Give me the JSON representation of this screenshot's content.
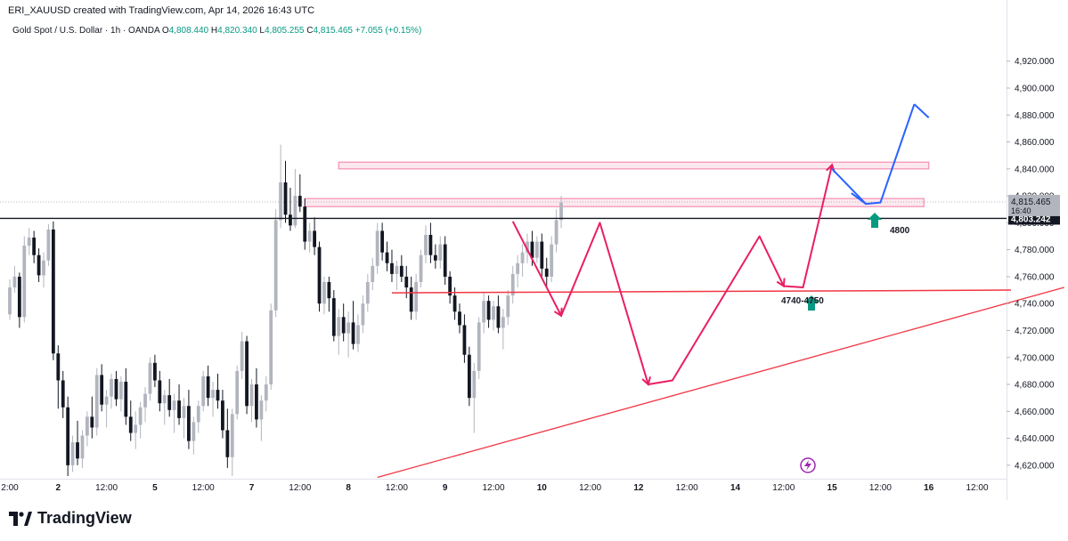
{
  "header": {
    "created_text": "ERI_XAUUSD created with TradingView.com, Apr 14, 2026 16:43 UTC"
  },
  "legend": {
    "symbol": "Gold Spot / U.S. Dollar · 1h · OANDA",
    "o_label": "O",
    "o_value": "4,808.440",
    "h_label": "H",
    "h_value": "4,820.340",
    "l_label": "L",
    "l_value": "4,805.255",
    "c_label": "C",
    "c_value": "4,815.465",
    "change": "+7.055 (+0.15%)"
  },
  "brand": {
    "name": "TradingView"
  },
  "colors": {
    "up": "#b2b5be",
    "down": "#131722",
    "pink": "#e91e63",
    "red": "#f23645",
    "blue": "#2962ff",
    "green": "#089981"
  },
  "chart_data": {
    "type": "candlestick",
    "title": "Gold Spot / U.S. Dollar · 1h · OANDA",
    "ylim": [
      4610,
      4935
    ],
    "y_ticks": [
      "4,620.000",
      "4,640.000",
      "4,660.000",
      "4,680.000",
      "4,700.000",
      "4,720.000",
      "4,740.000",
      "4,760.000",
      "4,780.000",
      "4,800.000",
      "4,820.000",
      "4,840.000",
      "4,860.000",
      "4,880.000",
      "4,900.000",
      "4,920.000"
    ],
    "y_tick_values": [
      4620,
      4640,
      4660,
      4680,
      4700,
      4720,
      4740,
      4760,
      4780,
      4800,
      4820,
      4840,
      4860,
      4880,
      4900,
      4920
    ],
    "x_ticks": [
      {
        "label": "2:00",
        "bar": 0
      },
      {
        "label": "2",
        "bar": 10
      },
      {
        "label": "12:00",
        "bar": 20
      },
      {
        "label": "5",
        "bar": 30
      },
      {
        "label": "12:00",
        "bar": 40
      },
      {
        "label": "7",
        "bar": 50
      },
      {
        "label": "12:00",
        "bar": 60
      },
      {
        "label": "8",
        "bar": 70
      },
      {
        "label": "12:00",
        "bar": 80
      },
      {
        "label": "9",
        "bar": 90
      },
      {
        "label": "12:00",
        "bar": 100
      },
      {
        "label": "10",
        "bar": 110
      },
      {
        "label": "12:00",
        "bar": 120
      },
      {
        "label": "12",
        "bar": 130
      },
      {
        "label": "12:00",
        "bar": 140
      },
      {
        "label": "14",
        "bar": 150
      },
      {
        "label": "12:00",
        "bar": 160
      },
      {
        "label": "15",
        "bar": 170
      },
      {
        "label": "12:00",
        "bar": 180
      },
      {
        "label": "16",
        "bar": 190
      },
      {
        "label": "12:00",
        "bar": 200
      }
    ],
    "price_labels": {
      "last_price": "4,815.465",
      "countdown": "16:40",
      "line_price": "4,803.242",
      "line_value": 4803.242
    },
    "candles": [
      [
        4732,
        4758,
        4728,
        4752
      ],
      [
        4752,
        4768,
        4748,
        4760
      ],
      [
        4760,
        4763,
        4722,
        4730
      ],
      [
        4730,
        4790,
        4726,
        4783
      ],
      [
        4783,
        4796,
        4776,
        4789
      ],
      [
        4789,
        4794,
        4770,
        4776
      ],
      [
        4776,
        4781,
        4756,
        4761
      ],
      [
        4761,
        4778,
        4752,
        4772
      ],
      [
        4772,
        4799,
        4768,
        4795
      ],
      [
        4795,
        4801,
        4698,
        4703
      ],
      [
        4703,
        4709,
        4662,
        4683
      ],
      [
        4683,
        4690,
        4655,
        4663
      ],
      [
        4663,
        4671,
        4612,
        4620
      ],
      [
        4620,
        4642,
        4615,
        4637
      ],
      [
        4637,
        4653,
        4620,
        4625
      ],
      [
        4625,
        4646,
        4618,
        4642
      ],
      [
        4642,
        4660,
        4634,
        4656
      ],
      [
        4656,
        4671,
        4640,
        4648
      ],
      [
        4648,
        4692,
        4642,
        4687
      ],
      [
        4687,
        4695,
        4660,
        4665
      ],
      [
        4665,
        4676,
        4648,
        4671
      ],
      [
        4671,
        4688,
        4662,
        4684
      ],
      [
        4684,
        4690,
        4664,
        4669
      ],
      [
        4669,
        4686,
        4660,
        4682
      ],
      [
        4682,
        4692,
        4650,
        4656
      ],
      [
        4656,
        4668,
        4638,
        4644
      ],
      [
        4644,
        4660,
        4632,
        4650
      ],
      [
        4650,
        4667,
        4640,
        4663
      ],
      [
        4663,
        4678,
        4652,
        4673
      ],
      [
        4673,
        4700,
        4668,
        4696
      ],
      [
        4696,
        4702,
        4678,
        4683
      ],
      [
        4683,
        4690,
        4660,
        4666
      ],
      [
        4666,
        4676,
        4650,
        4672
      ],
      [
        4672,
        4684,
        4656,
        4661
      ],
      [
        4661,
        4673,
        4644,
        4668
      ],
      [
        4668,
        4680,
        4650,
        4655
      ],
      [
        4655,
        4670,
        4640,
        4664
      ],
      [
        4664,
        4676,
        4632,
        4638
      ],
      [
        4638,
        4656,
        4628,
        4652
      ],
      [
        4652,
        4668,
        4644,
        4664
      ],
      [
        4664,
        4690,
        4660,
        4686
      ],
      [
        4686,
        4694,
        4664,
        4670
      ],
      [
        4670,
        4682,
        4656,
        4676
      ],
      [
        4676,
        4688,
        4662,
        4668
      ],
      [
        4668,
        4676,
        4640,
        4646
      ],
      [
        4646,
        4662,
        4618,
        4626
      ],
      [
        4626,
        4662,
        4612,
        4658
      ],
      [
        4658,
        4694,
        4654,
        4690
      ],
      [
        4690,
        4719,
        4684,
        4712
      ],
      [
        4712,
        4716,
        4658,
        4664
      ],
      [
        4664,
        4684,
        4652,
        4680
      ],
      [
        4680,
        4692,
        4648,
        4654
      ],
      [
        4654,
        4672,
        4638,
        4668
      ],
      [
        4668,
        4686,
        4660,
        4680
      ],
      [
        4680,
        4740,
        4676,
        4735
      ],
      [
        4735,
        4810,
        4730,
        4802
      ],
      [
        4802,
        4858,
        4796,
        4830
      ],
      [
        4830,
        4846,
        4800,
        4806
      ],
      [
        4806,
        4826,
        4794,
        4798
      ],
      [
        4798,
        4840,
        4796,
        4820
      ],
      [
        4820,
        4836,
        4808,
        4812
      ],
      [
        4812,
        4818,
        4780,
        4786
      ],
      [
        4786,
        4800,
        4778,
        4794
      ],
      [
        4794,
        4804,
        4776,
        4782
      ],
      [
        4782,
        4786,
        4734,
        4740
      ],
      [
        4740,
        4760,
        4732,
        4756
      ],
      [
        4756,
        4760,
        4734,
        4744
      ],
      [
        4744,
        4750,
        4712,
        4716
      ],
      [
        4716,
        4736,
        4702,
        4730
      ],
      [
        4730,
        4740,
        4712,
        4718
      ],
      [
        4718,
        4734,
        4700,
        4726
      ],
      [
        4726,
        4742,
        4706,
        4710
      ],
      [
        4710,
        4732,
        4704,
        4724
      ],
      [
        4724,
        4746,
        4718,
        4740
      ],
      [
        4740,
        4762,
        4734,
        4756
      ],
      [
        4756,
        4774,
        4750,
        4768
      ],
      [
        4768,
        4800,
        4762,
        4794
      ],
      [
        4794,
        4800,
        4772,
        4778
      ],
      [
        4778,
        4786,
        4764,
        4770
      ],
      [
        4770,
        4780,
        4756,
        4762
      ],
      [
        4762,
        4772,
        4750,
        4768
      ],
      [
        4768,
        4776,
        4756,
        4760
      ],
      [
        4760,
        4768,
        4744,
        4752
      ],
      [
        4752,
        4760,
        4728,
        4734
      ],
      [
        4734,
        4762,
        4728,
        4756
      ],
      [
        4756,
        4780,
        4752,
        4776
      ],
      [
        4776,
        4798,
        4770,
        4791
      ],
      [
        4791,
        4800,
        4770,
        4776
      ],
      [
        4776,
        4784,
        4766,
        4772
      ],
      [
        4772,
        4790,
        4766,
        4784
      ],
      [
        4784,
        4790,
        4754,
        4760
      ],
      [
        4760,
        4764,
        4740,
        4746
      ],
      [
        4746,
        4752,
        4728,
        4734
      ],
      [
        4734,
        4740,
        4718,
        4724
      ],
      [
        4724,
        4732,
        4696,
        4702
      ],
      [
        4702,
        4708,
        4664,
        4670
      ],
      [
        4670,
        4696,
        4644,
        4690
      ],
      [
        4690,
        4730,
        4684,
        4726
      ],
      [
        4726,
        4748,
        4718,
        4742
      ],
      [
        4742,
        4746,
        4722,
        4728
      ],
      [
        4728,
        4742,
        4720,
        4738
      ],
      [
        4738,
        4746,
        4718,
        4722
      ],
      [
        4722,
        4736,
        4706,
        4730
      ],
      [
        4730,
        4750,
        4724,
        4746
      ],
      [
        4746,
        4768,
        4740,
        4762
      ],
      [
        4762,
        4776,
        4752,
        4770
      ],
      [
        4770,
        4784,
        4760,
        4778
      ],
      [
        4778,
        4792,
        4770,
        4786
      ],
      [
        4786,
        4794,
        4768,
        4774
      ],
      [
        4774,
        4790,
        4770,
        4786
      ],
      [
        4786,
        4792,
        4760,
        4766
      ],
      [
        4766,
        4774,
        4752,
        4760
      ],
      [
        4760,
        4790,
        4756,
        4784
      ],
      [
        4784,
        4810,
        4778,
        4802
      ],
      [
        4802,
        4820,
        4796,
        4815
      ]
    ],
    "drawings": {
      "resistance_zone_upper": [
        4840,
        4845
      ],
      "resistance_zone_lower": [
        4812,
        4818
      ],
      "horizontal_support": 4750,
      "trendline_from": [
        76,
        4611
      ],
      "trendline_to": [
        218,
        4752
      ],
      "annotations": [
        {
          "text": "4800",
          "value": 4800
        },
        {
          "text": "4740-4750",
          "value": 4750
        }
      ]
    }
  }
}
